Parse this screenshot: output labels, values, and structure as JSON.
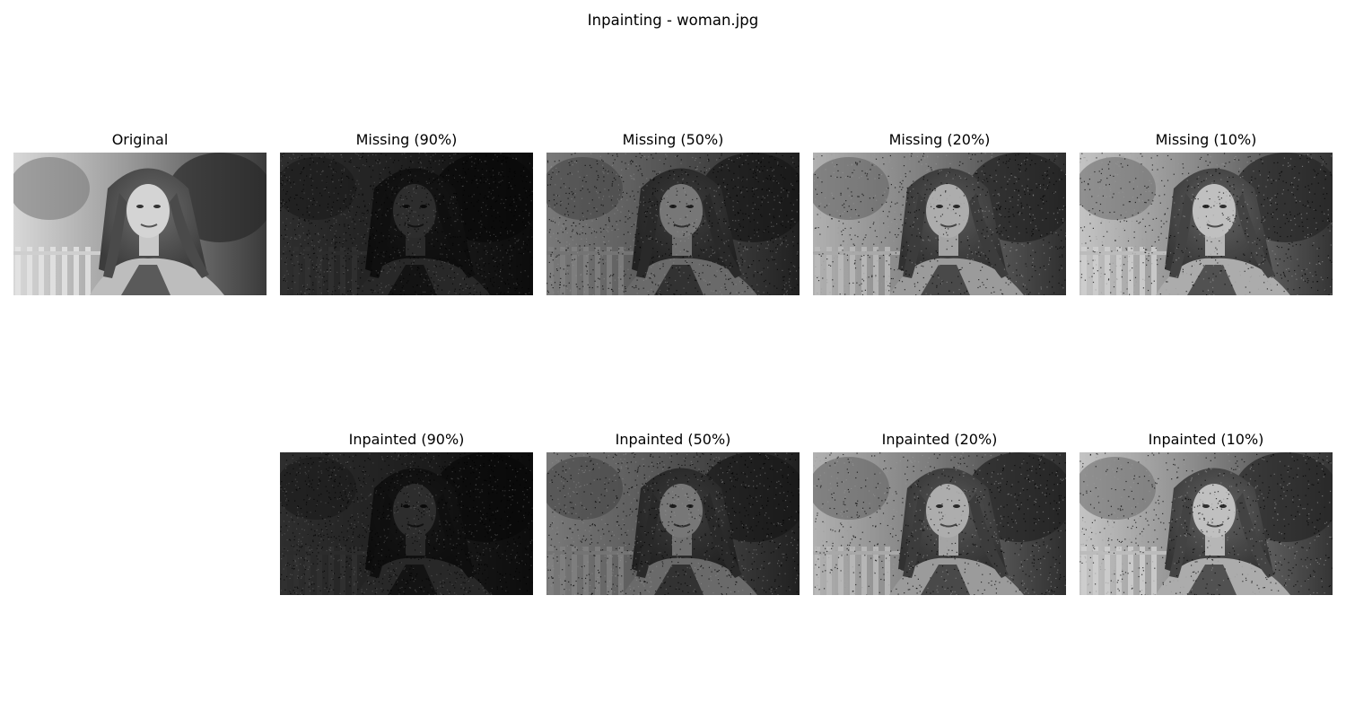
{
  "figure": {
    "title": "Inpainting - woman.jpg"
  },
  "panels": [
    {
      "title": "Original",
      "image": "woman-grayscale-photo",
      "missing_fraction": 0
    },
    {
      "title": "Missing (90%)",
      "image": "woman-photo-90-percent-pixels-missing",
      "missing_fraction": 0.9
    },
    {
      "title": "Missing (50%)",
      "image": "woman-photo-50-percent-pixels-missing",
      "missing_fraction": 0.5
    },
    {
      "title": "Missing (20%)",
      "image": "woman-photo-20-percent-pixels-missing",
      "missing_fraction": 0.2
    },
    {
      "title": "Missing (10%)",
      "image": "woman-photo-10-percent-pixels-missing",
      "missing_fraction": 0.1
    },
    {
      "title": "Inpainted (90%)",
      "image": "woman-photo-inpainted-from-90-percent-missing",
      "missing_fraction": 0.9
    },
    {
      "title": "Inpainted (50%)",
      "image": "woman-photo-inpainted-from-50-percent-missing",
      "missing_fraction": 0.5
    },
    {
      "title": "Inpainted (20%)",
      "image": "woman-photo-inpainted-from-20-percent-missing",
      "missing_fraction": 0.2
    },
    {
      "title": "Inpainted (10%)",
      "image": "woman-photo-inpainted-from-10-percent-missing",
      "missing_fraction": 0.1
    }
  ]
}
